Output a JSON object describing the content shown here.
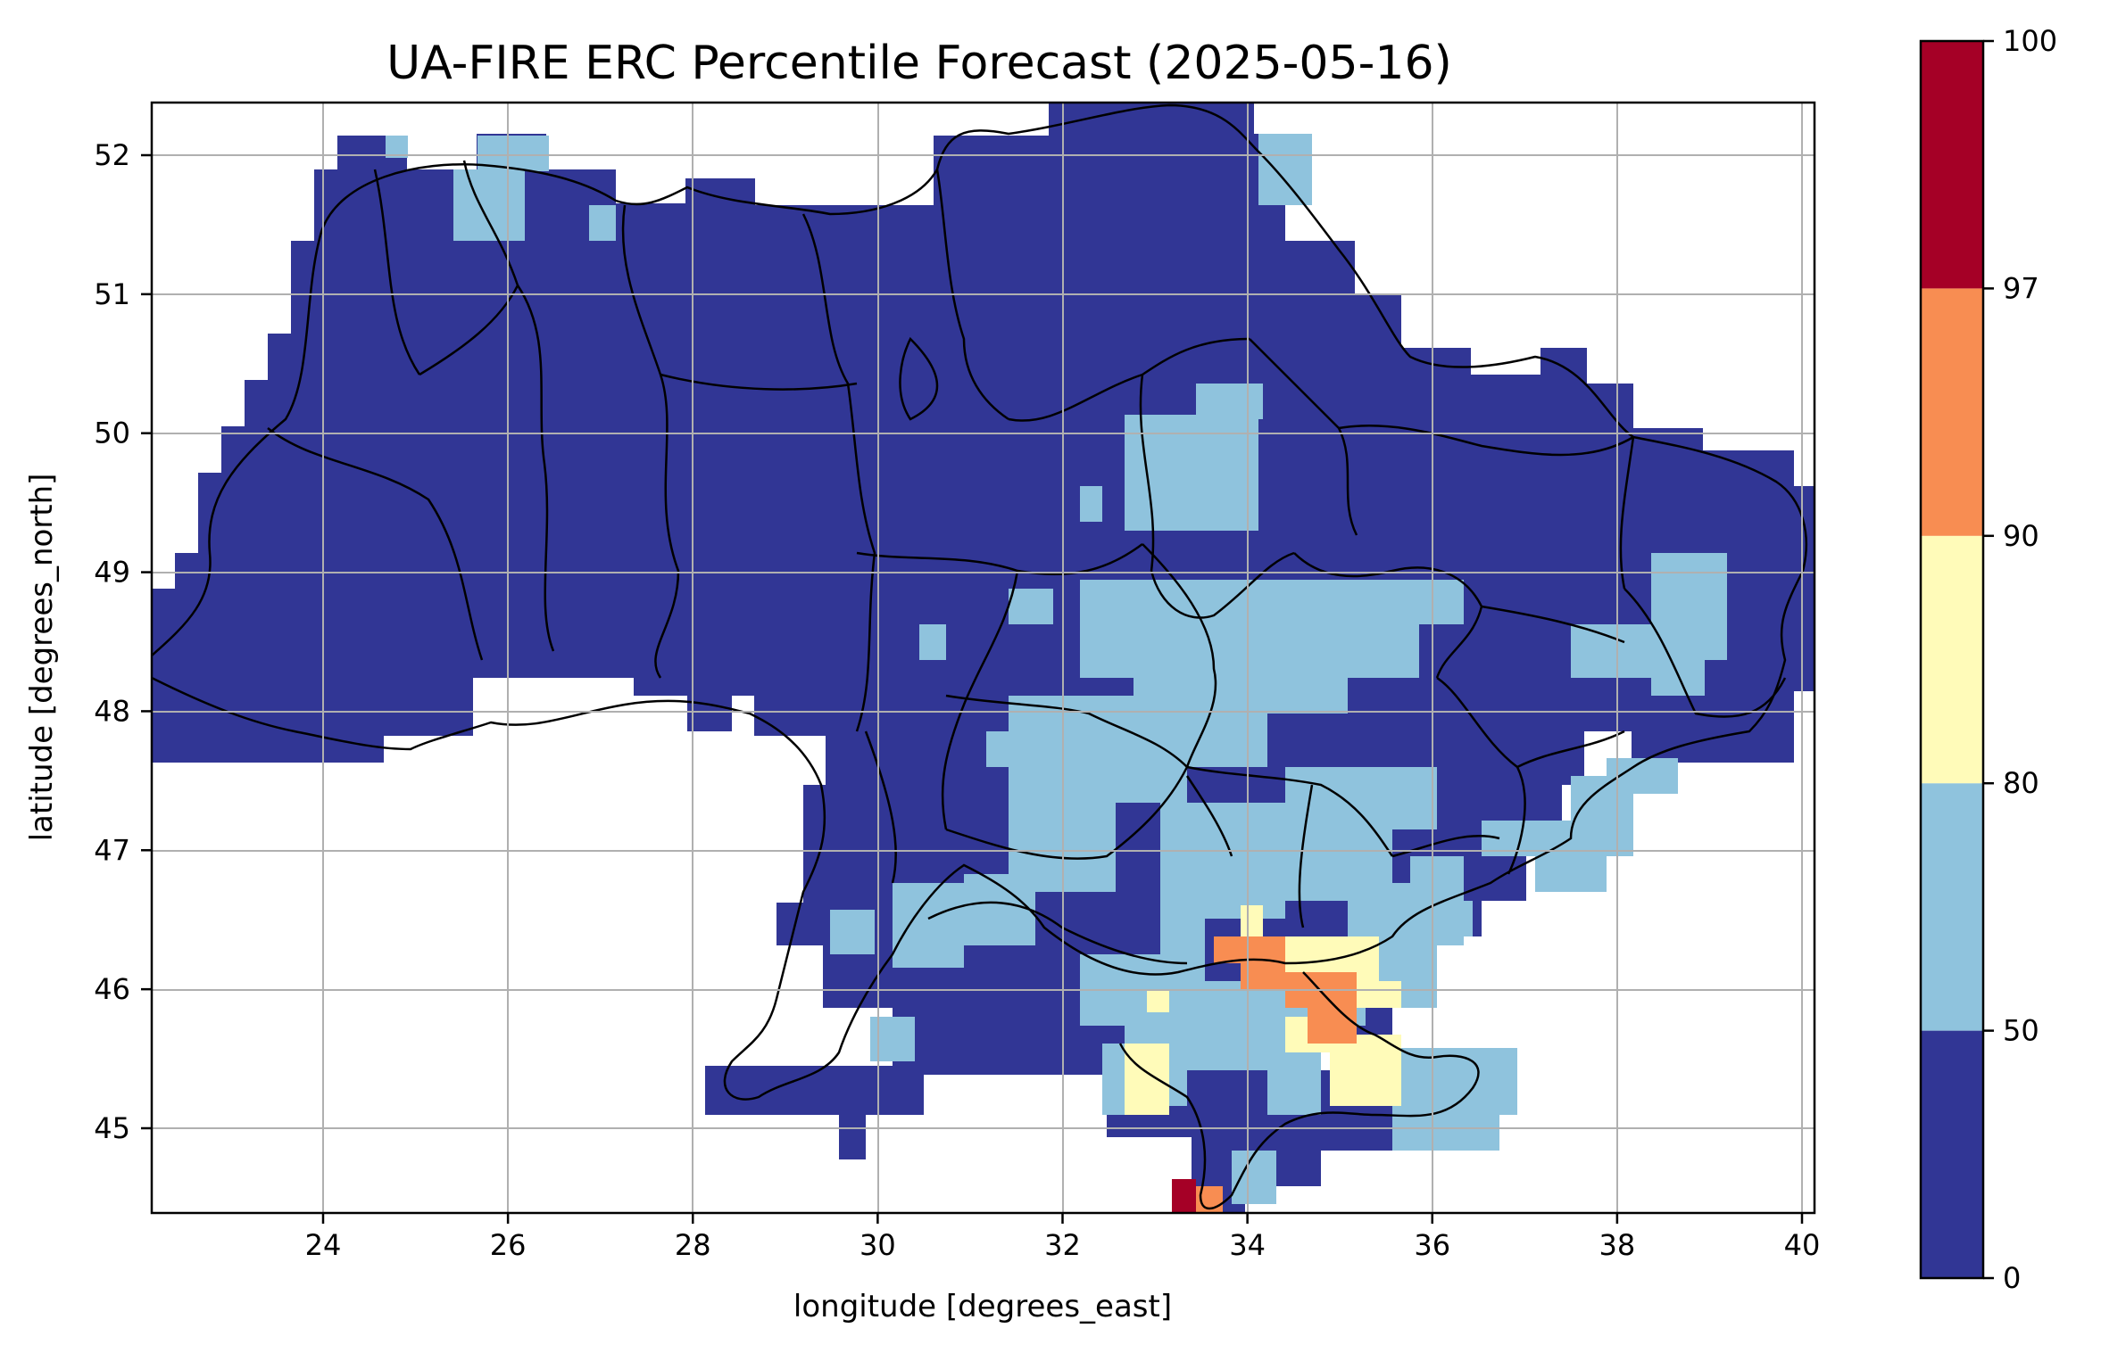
{
  "title": "UA-FIRE ERC Percentile Forecast (2025-05-16)",
  "xlabel": "longitude [degrees_east]",
  "ylabel": "latitude [degrees_north]",
  "x_ticks": [
    "24",
    "26",
    "28",
    "30",
    "32",
    "34",
    "36",
    "38",
    "40"
  ],
  "y_ticks": [
    "45",
    "46",
    "47",
    "48",
    "49",
    "50",
    "51",
    "52"
  ],
  "colorbar": {
    "tick_labels": [
      "0",
      "50",
      "80",
      "90",
      "97",
      "100"
    ],
    "bins": [
      {
        "from": 0,
        "to": 50,
        "color": "#313695"
      },
      {
        "from": 50,
        "to": 80,
        "color": "#8fc3dd"
      },
      {
        "from": 80,
        "to": 90,
        "color": "#fffbb9"
      },
      {
        "from": 90,
        "to": 97,
        "color": "#f88d52"
      },
      {
        "from": 97,
        "to": 100,
        "color": "#a50026"
      }
    ]
  },
  "map": {
    "lon_range": [
      22.15,
      40.15
    ],
    "lat_range": [
      44.35,
      52.4
    ],
    "grid": true,
    "dominant_class": "0-50",
    "high_percentile_area": "southern Ukraine / Crimea"
  }
}
